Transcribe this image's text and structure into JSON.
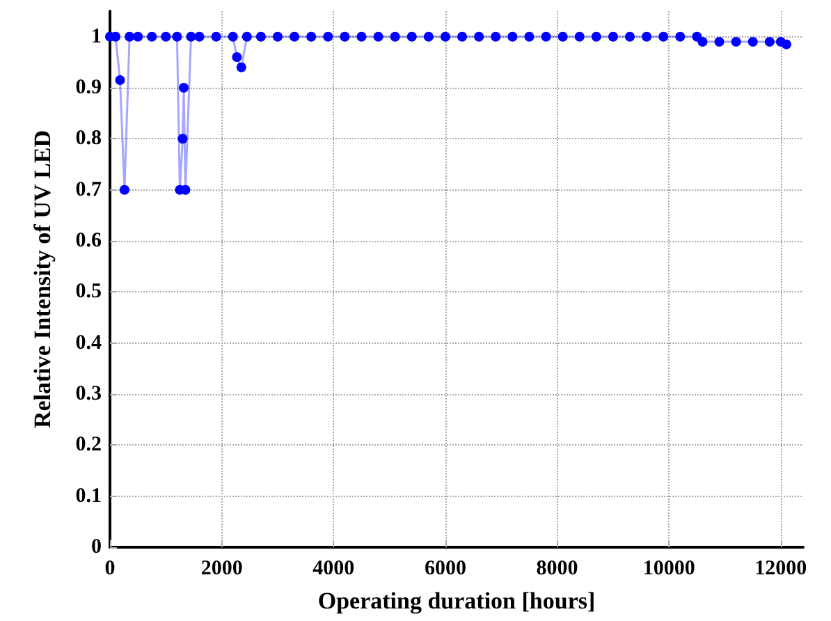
{
  "chart_data": {
    "type": "line",
    "xlabel": "Operating duration [hours]",
    "ylabel": "Relative Intensity of UV LED",
    "x": [
      0,
      100,
      180,
      260,
      350,
      500,
      750,
      1000,
      1200,
      1250,
      1300,
      1320,
      1350,
      1450,
      1600,
      1900,
      2200,
      2270,
      2350,
      2450,
      2700,
      3000,
      3300,
      3600,
      3900,
      4200,
      4500,
      4800,
      5100,
      5400,
      5700,
      6000,
      6300,
      6600,
      6900,
      7200,
      7500,
      7800,
      8100,
      8400,
      8700,
      9000,
      9300,
      9600,
      9900,
      10200,
      10500,
      10600,
      10900,
      11200,
      11500,
      11800,
      12000,
      12100
    ],
    "series": [
      {
        "color": "#0000ff",
        "values": [
          1,
          1,
          0.915,
          0.7,
          1,
          1,
          1,
          1,
          1,
          0.7,
          0.8,
          0.9,
          0.7,
          1,
          1,
          1,
          1,
          0.96,
          0.94,
          1,
          1,
          1,
          1,
          1,
          1,
          1,
          1,
          1,
          1,
          1,
          1,
          1,
          1,
          1,
          1,
          1,
          1,
          1,
          1,
          1,
          1,
          1,
          1,
          1,
          1,
          1,
          1,
          0.99,
          0.99,
          0.99,
          0.99,
          0.99,
          0.99,
          0.985
        ]
      }
    ],
    "xlim": [
      0,
      12400
    ],
    "xticks": [
      0,
      2000,
      4000,
      6000,
      8000,
      10000,
      12000
    ],
    "ylim": [
      0,
      1.05
    ],
    "yticks": [
      0,
      0.1,
      0.2,
      0.3,
      0.4,
      0.5,
      0.6,
      0.7,
      0.8,
      0.9,
      1.0
    ],
    "grid": true,
    "marker": "circle",
    "line_style": "solid"
  }
}
